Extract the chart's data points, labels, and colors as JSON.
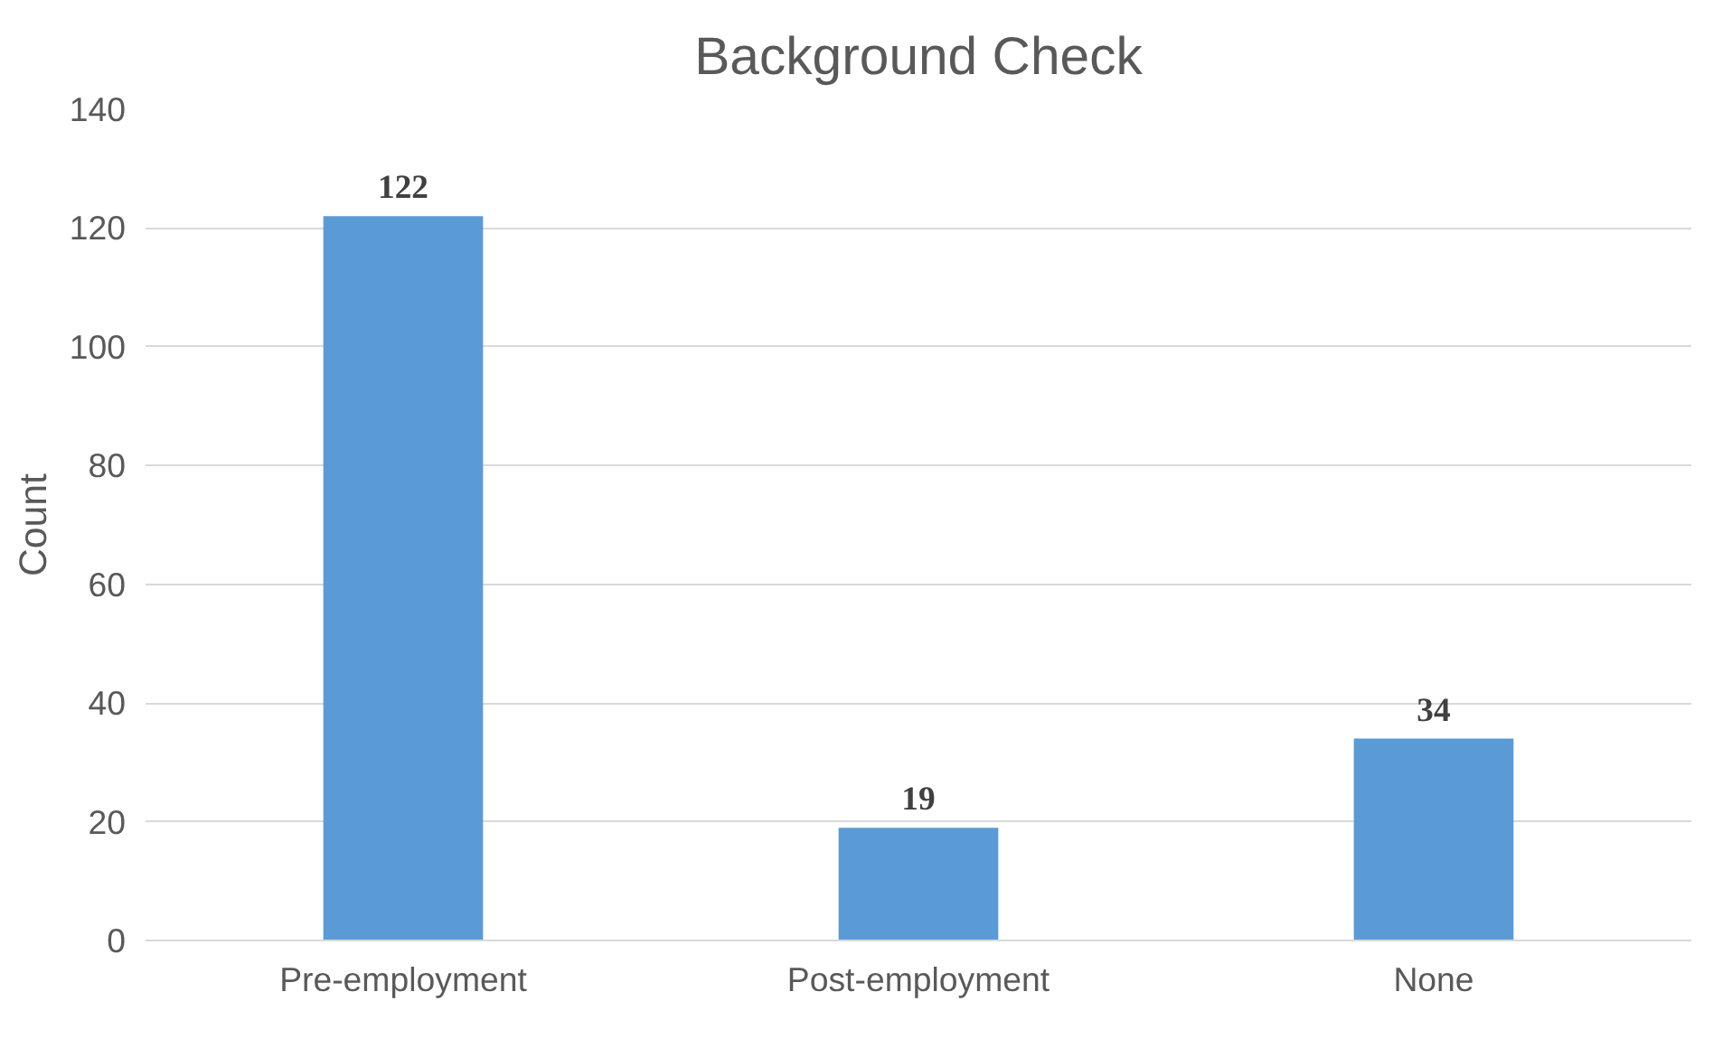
{
  "chart_data": {
    "type": "bar",
    "title": "Background Check",
    "ylabel": "Count",
    "categories": [
      "Pre-employment",
      "Post-employment",
      "None"
    ],
    "series": [
      {
        "color": "#5b9bd5",
        "values": [
          122,
          19,
          34
        ]
      }
    ],
    "ylim": [
      0,
      140
    ],
    "yticks": [
      0,
      20,
      40,
      60,
      80,
      100,
      120,
      140
    ],
    "grid": "y",
    "data_labels": true
  }
}
